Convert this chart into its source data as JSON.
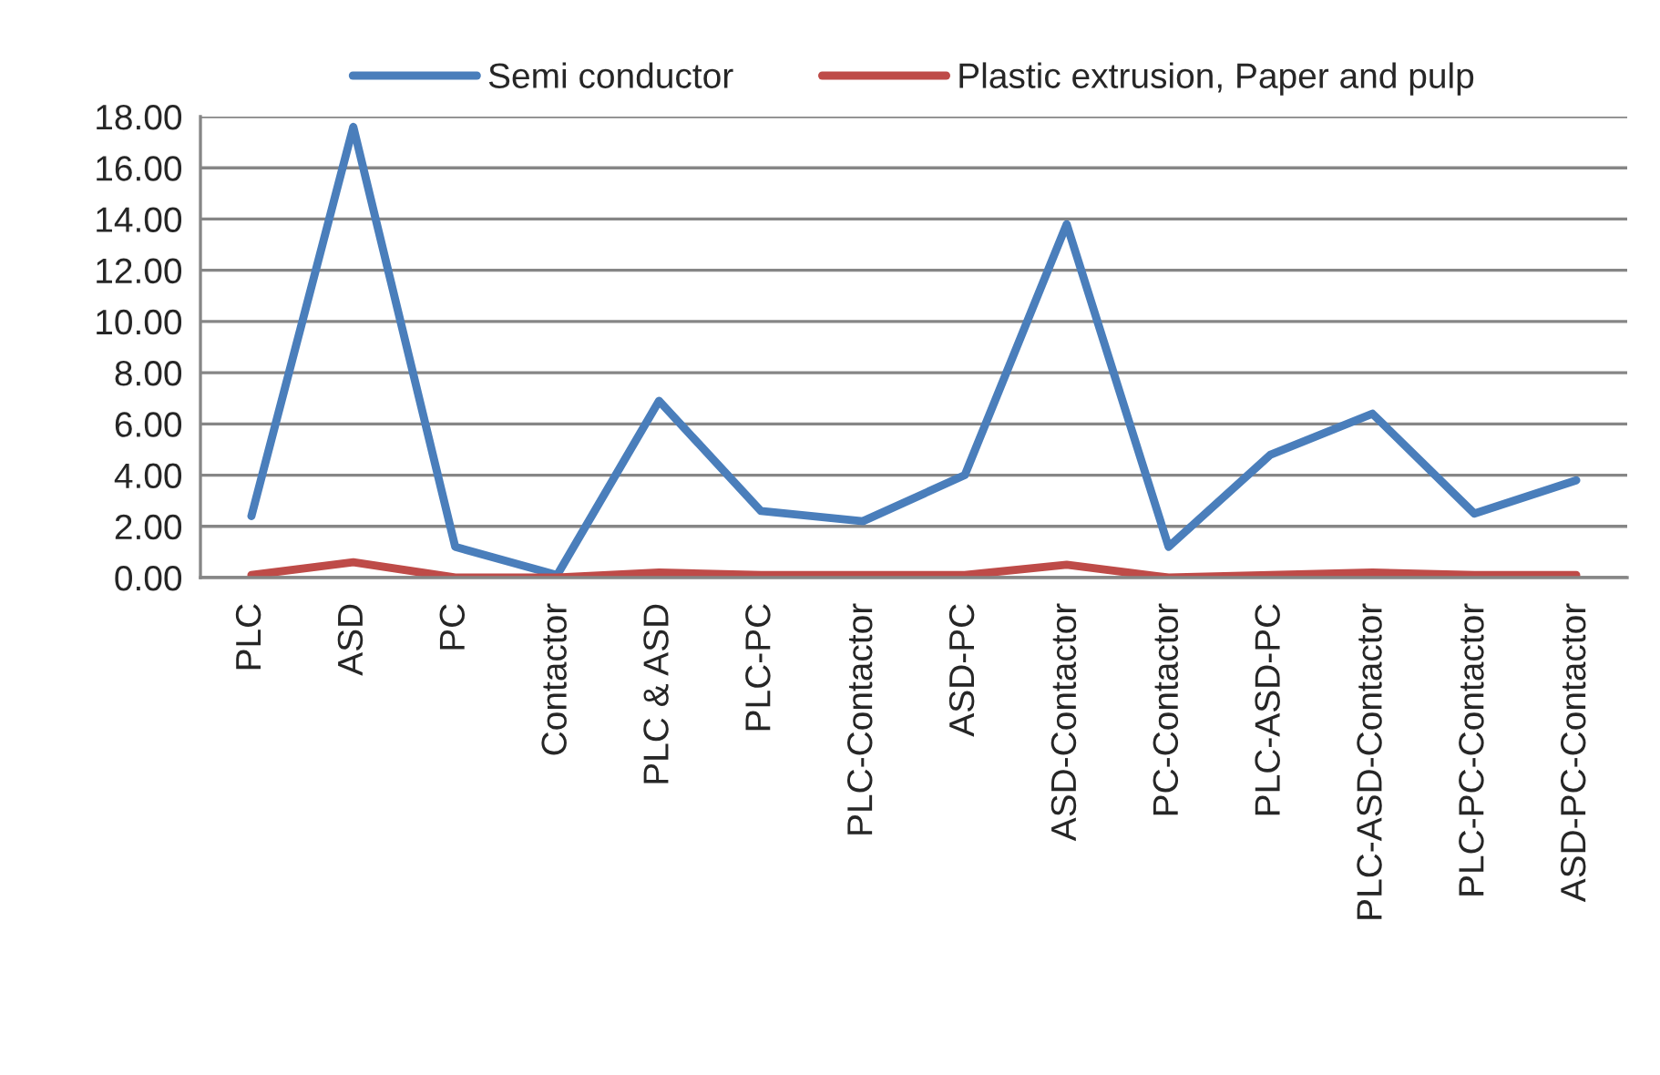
{
  "chart_data": {
    "type": "line",
    "categories": [
      "PLC",
      "ASD",
      "PC",
      "Contactor",
      "PLC & ASD",
      "PLC-PC",
      "PLC-Contactor",
      "ASD-PC",
      "ASD-Contactor",
      "PC-Contactor",
      "PLC-ASD-PC",
      "PLC-ASD-Contactor",
      "PLC-PC-Contactor",
      "ASD-PC-Contactor"
    ],
    "series": [
      {
        "name": "Semi conductor",
        "color": "#4a7ebb",
        "values": [
          2.4,
          17.6,
          1.2,
          0.1,
          6.9,
          2.6,
          2.2,
          4.0,
          13.8,
          1.2,
          4.8,
          6.4,
          2.5,
          3.8
        ]
      },
      {
        "name": "Plastic extrusion, Paper and pulp",
        "color": "#be4b48",
        "values": [
          0.1,
          0.6,
          0.0,
          0.0,
          0.2,
          0.1,
          0.1,
          0.1,
          0.5,
          0.0,
          0.1,
          0.2,
          0.1,
          0.1
        ]
      }
    ],
    "ylim": [
      0,
      18
    ],
    "yticks": [
      {
        "value": 0,
        "label": "0.00"
      },
      {
        "value": 2,
        "label": "2.00"
      },
      {
        "value": 4,
        "label": "4.00"
      },
      {
        "value": 6,
        "label": "6.00"
      },
      {
        "value": 8,
        "label": "8.00"
      },
      {
        "value": 10,
        "label": "10.00"
      },
      {
        "value": 12,
        "label": "12.00"
      },
      {
        "value": 14,
        "label": "14.00"
      },
      {
        "value": 16,
        "label": "16.00"
      },
      {
        "value": 18,
        "label": "18.00"
      }
    ],
    "grid": "y",
    "legend": "top",
    "marker": "none",
    "line_style": "solid"
  }
}
